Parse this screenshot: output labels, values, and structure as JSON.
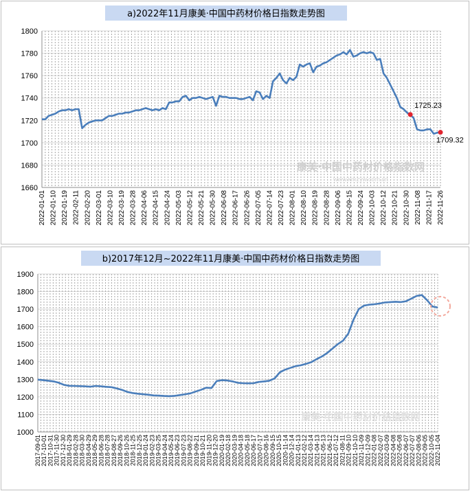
{
  "chart_data": [
    {
      "type": "line",
      "title": "a)2022年11月康美·中国中药材价格日指数走势图",
      "ylim": [
        1660,
        1800
      ],
      "yticks": [
        1660,
        1680,
        1700,
        1720,
        1740,
        1760,
        1780,
        1800
      ],
      "x_tick_labels": [
        "2022-01-01",
        "2022-01-10",
        "2022-01-19",
        "2022-02-11",
        "2022-02-20",
        "2022-03-01",
        "2022-03-10",
        "2022-03-19",
        "2022-03-28",
        "2022-04-06",
        "2022-04-15",
        "2022-04-24",
        "2022-05-03",
        "2022-05-12",
        "2022-05-21",
        "2022-05-30",
        "2022-06-08",
        "2022-06-17",
        "2022-06-26",
        "2022-07-05",
        "2022-07-14",
        "2022-07-23",
        "2022-08-01",
        "2022-08-10",
        "2022-08-19",
        "2022-08-28",
        "2022-09-06",
        "2022-09-15",
        "2022-09-24",
        "2022-10-03",
        "2022-10-12",
        "2022-10-21",
        "2022-10-30",
        "2022-11-08",
        "2022-11-17",
        "2022-11-26"
      ],
      "values": [
        1721,
        1721,
        1724,
        1725,
        1726,
        1728,
        1729,
        1729,
        1730,
        1729,
        1730,
        1730,
        1713,
        1716,
        1718,
        1719,
        1720,
        1720,
        1720,
        1722,
        1724,
        1724,
        1725,
        1726,
        1726,
        1727,
        1727,
        1728,
        1729,
        1729,
        1730,
        1731,
        1730,
        1729,
        1730,
        1729,
        1731,
        1730,
        1736,
        1736,
        1737,
        1737,
        1741,
        1742,
        1738,
        1740,
        1740,
        1741,
        1740,
        1739,
        1740,
        1741,
        1733,
        1742,
        1741,
        1741,
        1740,
        1740,
        1740,
        1739,
        1739,
        1740,
        1741,
        1738,
        1746,
        1745,
        1739,
        1742,
        1740,
        1755,
        1758,
        1762,
        1756,
        1753,
        1758,
        1756,
        1759,
        1770,
        1768,
        1770,
        1771,
        1763,
        1768,
        1769,
        1771,
        1772,
        1774,
        1776,
        1778,
        1779,
        1781,
        1779,
        1783,
        1777,
        1778,
        1780,
        1781,
        1780,
        1781,
        1780,
        1774,
        1775,
        1762,
        1758,
        1752,
        1746,
        1740,
        1732,
        1730,
        1727,
        1725,
        1722,
        1712,
        1711,
        1711,
        1712,
        1712,
        1708,
        1709,
        1709.32
      ],
      "highlighted_points": [
        {
          "label": "1725.23",
          "index": 110,
          "value": 1725.23
        },
        {
          "label": "1709.32",
          "index": 119,
          "value": 1709.32
        }
      ],
      "watermark": "康美·中国中药材价格指数网",
      "watermark_url": "www.kmzyw.com.cn"
    },
    {
      "type": "line",
      "title": "b)2017年12月~2022年11月康美·中国中药材价格日指数走势图",
      "ylim": [
        1000,
        1900
      ],
      "yticks": [
        1000,
        1100,
        1200,
        1300,
        1400,
        1500,
        1600,
        1700,
        1800,
        1900
      ],
      "x_tick_labels": [
        "2017-09-01",
        "2017-10-01",
        "2017-10-31",
        "2017-11-30",
        "2017-12-30",
        "2018-01-29",
        "2018-02-28",
        "2018-03-30",
        "2018-04-29",
        "2018-05-29",
        "2018-06-28",
        "2018-07-28",
        "2018-08-27",
        "2018-09-26",
        "2018-10-26",
        "2018-11-25",
        "2018-12-25",
        "2019-01-24",
        "2019-02-23",
        "2019-03-25",
        "2019-04-24",
        "2019-05-24",
        "2019-06-23",
        "2019-07-23",
        "2019-08-22",
        "2019-09-21",
        "2019-10-21",
        "2019-11-20",
        "2019-12-20",
        "2020-01-19",
        "2020-02-18",
        "2020-03-19",
        "2020-04-18",
        "2020-05-18",
        "2020-06-17",
        "2020-07-17",
        "2020-08-16",
        "2020-09-15",
        "2020-10-15",
        "2020-11-14",
        "2020-12-14",
        "2021-01-13",
        "2021-02-12",
        "2021-03-14",
        "2021-04-13",
        "2021-05-13",
        "2021-06-12",
        "2021-07-12",
        "2021-08-11",
        "2021-09-10",
        "2021-10-10",
        "2021-11-09",
        "2021-12-09",
        "2022-01-08",
        "2022-02-07",
        "2022-03-09",
        "2022-04-08",
        "2022-05-08",
        "2022-06-07",
        "2022-07-07",
        "2022-08-06",
        "2022-09-05",
        "2022-10-05",
        "2022-11-04"
      ],
      "values": [
        1298,
        1295,
        1292,
        1288,
        1280,
        1268,
        1263,
        1262,
        1261,
        1260,
        1258,
        1262,
        1260,
        1257,
        1255,
        1248,
        1240,
        1228,
        1222,
        1218,
        1215,
        1212,
        1208,
        1207,
        1205,
        1204,
        1206,
        1210,
        1215,
        1220,
        1230,
        1240,
        1252,
        1250,
        1290,
        1295,
        1293,
        1288,
        1280,
        1278,
        1277,
        1278,
        1285,
        1288,
        1292,
        1305,
        1340,
        1355,
        1365,
        1375,
        1380,
        1388,
        1398,
        1415,
        1430,
        1450,
        1475,
        1500,
        1520,
        1560,
        1640,
        1700,
        1720,
        1725,
        1728,
        1732,
        1738,
        1740,
        1742,
        1740,
        1745,
        1760,
        1775,
        1780,
        1750,
        1715,
        1709
      ],
      "watermark": "康美·中国中药材价格指数网"
    }
  ]
}
